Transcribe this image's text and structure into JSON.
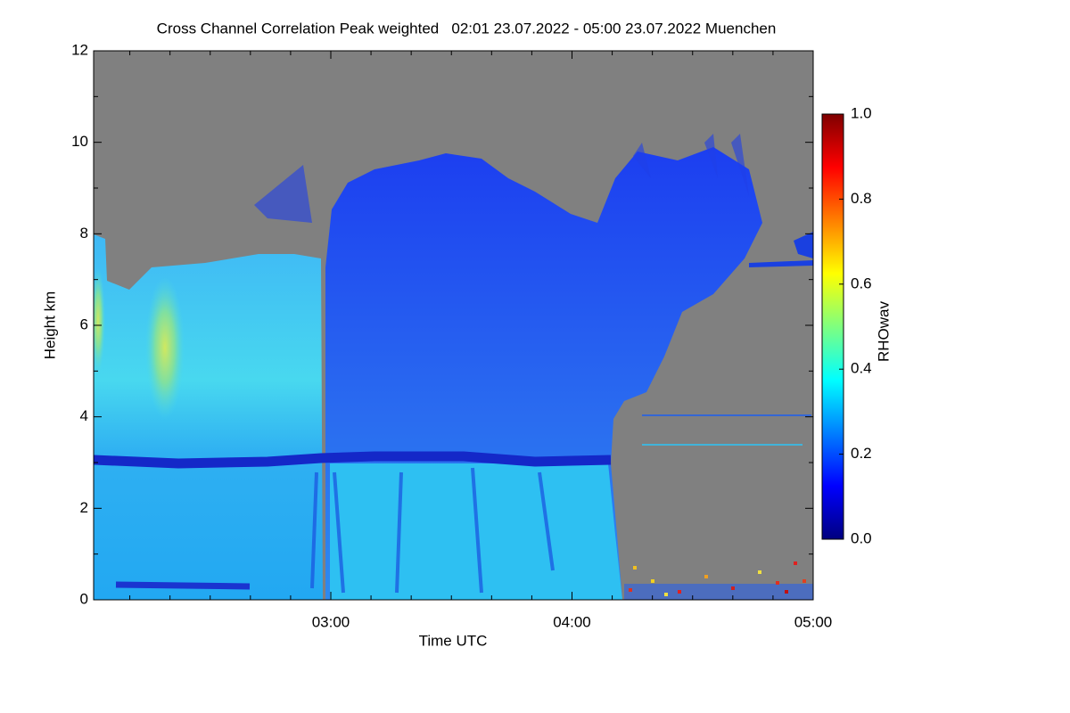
{
  "chart_data": {
    "type": "heatmap",
    "title": "Cross Channel Correlation Peak weighted   02:01 23.07.2022 - 05:00 23.07.2022 Muenchen",
    "xlabel": "Time UTC",
    "ylabel": "Height km",
    "xlim": [
      121,
      300
    ],
    "xticks": [
      {
        "value": 180,
        "label": "03:00"
      },
      {
        "value": 240,
        "label": "04:00"
      },
      {
        "value": 300,
        "label": "05:00"
      }
    ],
    "xminorticks": [
      130,
      140,
      150,
      160,
      170,
      190,
      200,
      210,
      220,
      230,
      250,
      260,
      270,
      280,
      290
    ],
    "ylim": [
      0,
      12
    ],
    "yticks": [
      0,
      2,
      4,
      6,
      8,
      10,
      12
    ],
    "yminorticks": [
      1,
      3,
      5,
      7,
      9,
      11
    ],
    "colorbar": {
      "label": "RHOwav",
      "lim": [
        0,
        1
      ],
      "colormap": "jet",
      "ticks": [
        {
          "value": 0,
          "label": "0.0"
        },
        {
          "value": 0.2,
          "label": "0.2"
        },
        {
          "value": 0.4,
          "label": "0.4"
        },
        {
          "value": 0.6,
          "label": "0.6"
        },
        {
          "value": 0.8,
          "label": "0.8"
        },
        {
          "value": 1,
          "label": "1.0"
        }
      ]
    }
  }
}
